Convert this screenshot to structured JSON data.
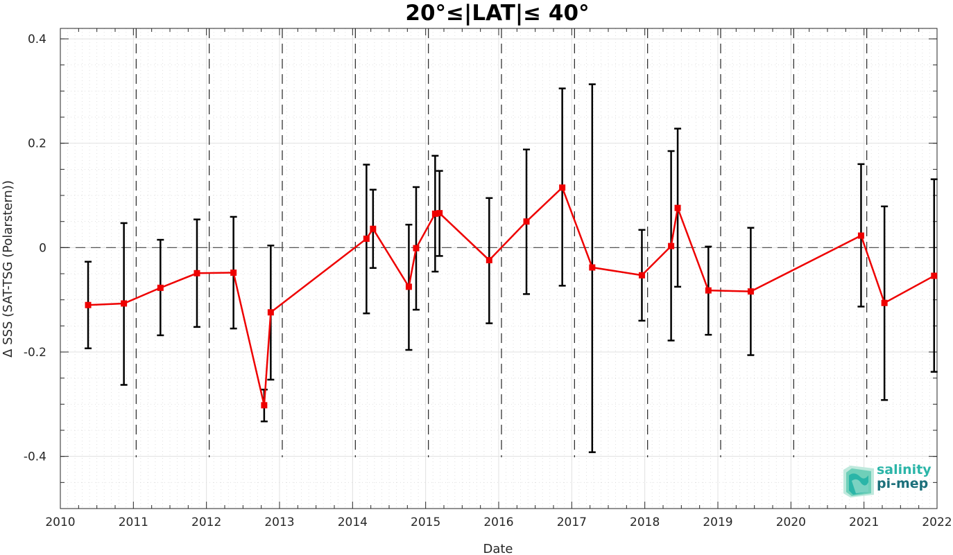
{
  "chart_data": {
    "type": "line",
    "title": "20°≤|LAT|≤ 40°",
    "xlabel": "Date",
    "ylabel": "Δ SSS (SAT-TSG (Polarstern))",
    "xlim": [
      2010,
      2022
    ],
    "ylim": [
      -0.5,
      0.42
    ],
    "x_ticks": [
      "2010",
      "2011",
      "2012",
      "2013",
      "2014",
      "2015",
      "2016",
      "2017",
      "2018",
      "2019",
      "2020",
      "2021",
      "2022"
    ],
    "y_ticks": [
      {
        "value": 0.4,
        "label": "0.4"
      },
      {
        "value": 0.2,
        "label": "0.2"
      },
      {
        "value": 0,
        "label": "0"
      },
      {
        "value": -0.2,
        "label": "-0.2"
      },
      {
        "value": -0.4,
        "label": "-0.4"
      }
    ],
    "grid": true,
    "zero_line": "dashed",
    "cruise_boundaries": [
      2011.0,
      2012.0,
      2013.0,
      2014.0,
      2015.0,
      2016.0,
      2017.0,
      2018.0,
      2019.0,
      2020.0,
      2021.0
    ],
    "series": [
      {
        "color": "#ee0000",
        "errorbar_color": "#000000",
        "marker": "square",
        "points": [
          {
            "x": 2010.38,
            "y": -0.11,
            "lo": -0.193,
            "hi": -0.027
          },
          {
            "x": 2010.87,
            "y": -0.107,
            "lo": -0.263,
            "hi": 0.047
          },
          {
            "x": 2011.37,
            "y": -0.077,
            "lo": -0.168,
            "hi": 0.015
          },
          {
            "x": 2011.87,
            "y": -0.049,
            "lo": -0.152,
            "hi": 0.054
          },
          {
            "x": 2012.37,
            "y": -0.048,
            "lo": -0.155,
            "hi": 0.059
          },
          {
            "x": 2012.79,
            "y": -0.302,
            "lo": -0.333,
            "hi": -0.272
          },
          {
            "x": 2012.88,
            "y": -0.124,
            "lo": -0.253,
            "hi": 0.004
          },
          {
            "x": 2014.19,
            "y": 0.017,
            "lo": -0.126,
            "hi": 0.159
          },
          {
            "x": 2014.28,
            "y": 0.036,
            "lo": -0.039,
            "hi": 0.111
          },
          {
            "x": 2014.77,
            "y": -0.075,
            "lo": -0.196,
            "hi": 0.044
          },
          {
            "x": 2014.87,
            "y": -0.001,
            "lo": -0.119,
            "hi": 0.116
          },
          {
            "x": 2015.13,
            "y": 0.065,
            "lo": -0.046,
            "hi": 0.176
          },
          {
            "x": 2015.19,
            "y": 0.066,
            "lo": -0.016,
            "hi": 0.147
          },
          {
            "x": 2015.87,
            "y": -0.024,
            "lo": -0.145,
            "hi": 0.095
          },
          {
            "x": 2016.38,
            "y": 0.05,
            "lo": -0.089,
            "hi": 0.188
          },
          {
            "x": 2016.87,
            "y": 0.115,
            "lo": -0.073,
            "hi": 0.305
          },
          {
            "x": 2017.28,
            "y": -0.038,
            "lo": -0.392,
            "hi": 0.313
          },
          {
            "x": 2017.96,
            "y": -0.053,
            "lo": -0.14,
            "hi": 0.034
          },
          {
            "x": 2018.36,
            "y": 0.003,
            "lo": -0.178,
            "hi": 0.185
          },
          {
            "x": 2018.45,
            "y": 0.076,
            "lo": -0.075,
            "hi": 0.228
          },
          {
            "x": 2018.87,
            "y": -0.082,
            "lo": -0.167,
            "hi": 0.002
          },
          {
            "x": 2019.45,
            "y": -0.084,
            "lo": -0.206,
            "hi": 0.038
          },
          {
            "x": 2020.96,
            "y": 0.023,
            "lo": -0.113,
            "hi": 0.16
          },
          {
            "x": 2021.28,
            "y": -0.106,
            "lo": -0.292,
            "hi": 0.079
          },
          {
            "x": 2021.96,
            "y": -0.054,
            "lo": -0.238,
            "hi": 0.131
          }
        ]
      }
    ]
  },
  "logo": {
    "line1": "salinity",
    "line2": "pi-mep",
    "colors": [
      "#2bb5a8",
      "#1b6f7a",
      "#8fd9c8"
    ]
  }
}
